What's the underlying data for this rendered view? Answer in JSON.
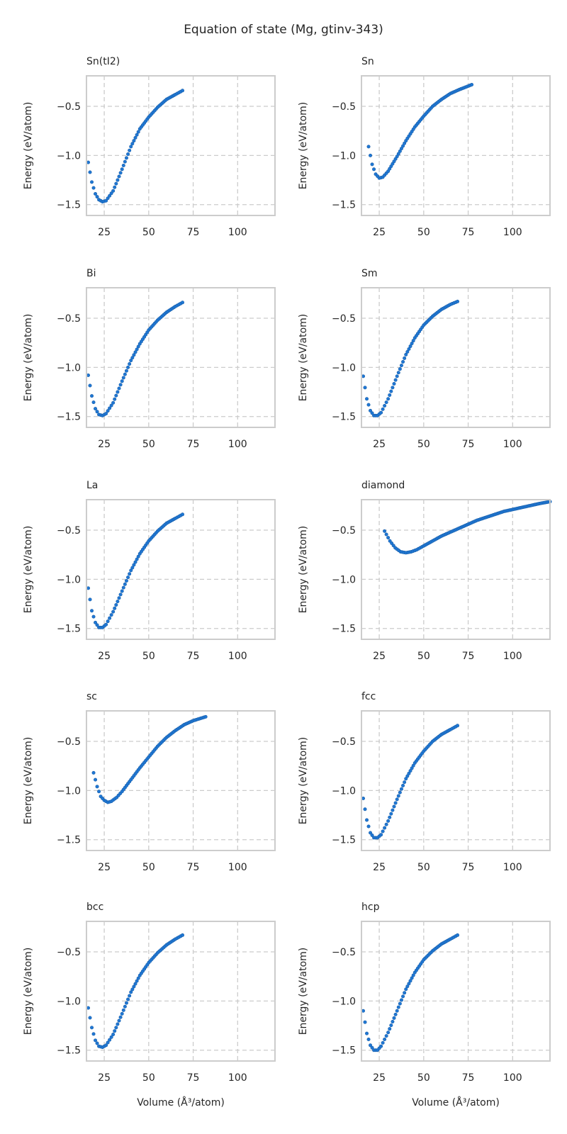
{
  "figure_title": "Equation of state (Mg, gtinv-343)",
  "chart_data": [
    {
      "type": "scatter",
      "title": "Sn(tI2)",
      "xlabel": "",
      "ylabel": "Energy (eV/atom)",
      "xlim": [
        15,
        121
      ],
      "ylim": [
        -1.61,
        -0.19
      ],
      "xticks": [
        "25",
        "50",
        "75",
        "100"
      ],
      "yticks": [
        "−0.5",
        "−1.0",
        "−1.5"
      ],
      "x": [
        16,
        18,
        20,
        22,
        24,
        26,
        30,
        35,
        40,
        45,
        50,
        55,
        60,
        65,
        69
      ],
      "y": [
        -1.07,
        -1.27,
        -1.39,
        -1.45,
        -1.47,
        -1.46,
        -1.36,
        -1.14,
        -0.91,
        -0.73,
        -0.61,
        -0.51,
        -0.43,
        -0.38,
        -0.34
      ]
    },
    {
      "type": "scatter",
      "title": "Sn",
      "xlabel": "",
      "ylabel": "Energy (eV/atom)",
      "xlim": [
        15,
        121
      ],
      "ylim": [
        -1.61,
        -0.19
      ],
      "xticks": [
        "25",
        "50",
        "75",
        "100"
      ],
      "yticks": [
        "−0.5",
        "−1.0",
        "−1.5"
      ],
      "x": [
        19,
        21,
        23,
        25,
        27,
        30,
        35,
        40,
        45,
        50,
        55,
        60,
        65,
        70,
        77
      ],
      "y": [
        -0.91,
        -1.09,
        -1.19,
        -1.23,
        -1.22,
        -1.16,
        -1.01,
        -0.85,
        -0.71,
        -0.6,
        -0.5,
        -0.43,
        -0.37,
        -0.33,
        -0.28
      ]
    },
    {
      "type": "scatter",
      "title": "Bi",
      "xlabel": "",
      "ylabel": "Energy (eV/atom)",
      "xlim": [
        15,
        121
      ],
      "ylim": [
        -1.61,
        -0.19
      ],
      "xticks": [
        "25",
        "50",
        "75",
        "100"
      ],
      "yticks": [
        "−0.5",
        "−1.0",
        "−1.5"
      ],
      "x": [
        16,
        18,
        20,
        22,
        24,
        26,
        30,
        35,
        40,
        45,
        50,
        55,
        60,
        65,
        69
      ],
      "y": [
        -1.08,
        -1.29,
        -1.42,
        -1.48,
        -1.49,
        -1.47,
        -1.36,
        -1.14,
        -0.93,
        -0.76,
        -0.62,
        -0.52,
        -0.44,
        -0.38,
        -0.34
      ]
    },
    {
      "type": "scatter",
      "title": "Sm",
      "xlabel": "",
      "ylabel": "Energy (eV/atom)",
      "xlim": [
        15,
        121
      ],
      "ylim": [
        -1.61,
        -0.19
      ],
      "xticks": [
        "25",
        "50",
        "75",
        "100"
      ],
      "yticks": [
        "−0.5",
        "−1.0",
        "−1.5"
      ],
      "x": [
        16,
        18,
        20,
        22,
        24,
        26,
        30,
        35,
        40,
        45,
        50,
        55,
        60,
        65,
        69
      ],
      "y": [
        -1.09,
        -1.32,
        -1.44,
        -1.49,
        -1.49,
        -1.46,
        -1.32,
        -1.09,
        -0.87,
        -0.7,
        -0.57,
        -0.48,
        -0.41,
        -0.36,
        -0.33
      ]
    },
    {
      "type": "scatter",
      "title": "La",
      "xlabel": "",
      "ylabel": "Energy (eV/atom)",
      "xlim": [
        15,
        121
      ],
      "ylim": [
        -1.61,
        -0.19
      ],
      "xticks": [
        "25",
        "50",
        "75",
        "100"
      ],
      "yticks": [
        "−0.5",
        "−1.0",
        "−1.5"
      ],
      "x": [
        16,
        18,
        20,
        22,
        24,
        26,
        30,
        35,
        40,
        45,
        50,
        55,
        60,
        65,
        69
      ],
      "y": [
        -1.09,
        -1.32,
        -1.44,
        -1.49,
        -1.49,
        -1.46,
        -1.33,
        -1.12,
        -0.91,
        -0.74,
        -0.61,
        -0.51,
        -0.43,
        -0.38,
        -0.34
      ]
    },
    {
      "type": "scatter",
      "title": "diamond",
      "xlabel": "",
      "ylabel": "Energy (eV/atom)",
      "xlim": [
        15,
        121
      ],
      "ylim": [
        -1.61,
        -0.19
      ],
      "xticks": [
        "25",
        "50",
        "75",
        "100"
      ],
      "yticks": [
        "−0.5",
        "−1.0",
        "−1.5"
      ],
      "x": [
        28,
        31,
        34,
        37,
        40,
        43,
        46,
        50,
        55,
        60,
        65,
        70,
        75,
        80,
        85,
        90,
        95,
        100,
        105,
        110,
        115,
        121
      ],
      "y": [
        -0.51,
        -0.61,
        -0.68,
        -0.72,
        -0.73,
        -0.72,
        -0.7,
        -0.66,
        -0.61,
        -0.56,
        -0.52,
        -0.48,
        -0.44,
        -0.4,
        -0.37,
        -0.34,
        -0.31,
        -0.29,
        -0.27,
        -0.25,
        -0.23,
        -0.21
      ]
    },
    {
      "type": "scatter",
      "title": "sc",
      "xlabel": "",
      "ylabel": "Energy (eV/atom)",
      "xlim": [
        15,
        121
      ],
      "ylim": [
        -1.61,
        -0.19
      ],
      "xticks": [
        "25",
        "50",
        "75",
        "100"
      ],
      "yticks": [
        "−0.5",
        "−1.0",
        "−1.5"
      ],
      "x": [
        19,
        21,
        23,
        25,
        27,
        29,
        32,
        35,
        40,
        45,
        50,
        55,
        60,
        65,
        70,
        75,
        82
      ],
      "y": [
        -0.82,
        -0.96,
        -1.06,
        -1.1,
        -1.12,
        -1.11,
        -1.07,
        -1.01,
        -0.89,
        -0.77,
        -0.66,
        -0.55,
        -0.46,
        -0.39,
        -0.33,
        -0.29,
        -0.25
      ]
    },
    {
      "type": "scatter",
      "title": "fcc",
      "xlabel": "",
      "ylabel": "Energy (eV/atom)",
      "xlim": [
        15,
        121
      ],
      "ylim": [
        -1.61,
        -0.19
      ],
      "xticks": [
        "25",
        "50",
        "75",
        "100"
      ],
      "yticks": [
        "−0.5",
        "−1.0",
        "−1.5"
      ],
      "x": [
        16,
        18,
        20,
        22,
        24,
        26,
        30,
        35,
        40,
        45,
        50,
        55,
        60,
        65,
        69
      ],
      "y": [
        -1.08,
        -1.3,
        -1.43,
        -1.48,
        -1.48,
        -1.45,
        -1.31,
        -1.09,
        -0.88,
        -0.72,
        -0.6,
        -0.5,
        -0.43,
        -0.38,
        -0.34
      ]
    },
    {
      "type": "scatter",
      "title": "bcc",
      "xlabel": "Volume (Å³/atom)",
      "ylabel": "Energy (eV/atom)",
      "xlim": [
        15,
        121
      ],
      "ylim": [
        -1.61,
        -0.19
      ],
      "xticks": [
        "25",
        "50",
        "75",
        "100"
      ],
      "yticks": [
        "−0.5",
        "−1.0",
        "−1.5"
      ],
      "x": [
        16,
        18,
        20,
        22,
        24,
        26,
        30,
        35,
        40,
        45,
        50,
        55,
        60,
        65,
        69
      ],
      "y": [
        -1.07,
        -1.27,
        -1.4,
        -1.46,
        -1.47,
        -1.45,
        -1.34,
        -1.13,
        -0.91,
        -0.74,
        -0.61,
        -0.51,
        -0.43,
        -0.37,
        -0.33
      ]
    },
    {
      "type": "scatter",
      "title": "hcp",
      "xlabel": "Volume (Å³/atom)",
      "ylabel": "Energy (eV/atom)",
      "xlim": [
        15,
        121
      ],
      "ylim": [
        -1.61,
        -0.19
      ],
      "xticks": [
        "25",
        "50",
        "75",
        "100"
      ],
      "yticks": [
        "−0.5",
        "−1.0",
        "−1.5"
      ],
      "x": [
        16,
        18,
        20,
        22,
        24,
        26,
        30,
        35,
        40,
        45,
        50,
        55,
        60,
        65,
        69
      ],
      "y": [
        -1.1,
        -1.33,
        -1.45,
        -1.5,
        -1.5,
        -1.46,
        -1.32,
        -1.1,
        -0.88,
        -0.71,
        -0.58,
        -0.49,
        -0.42,
        -0.37,
        -0.33
      ]
    }
  ]
}
